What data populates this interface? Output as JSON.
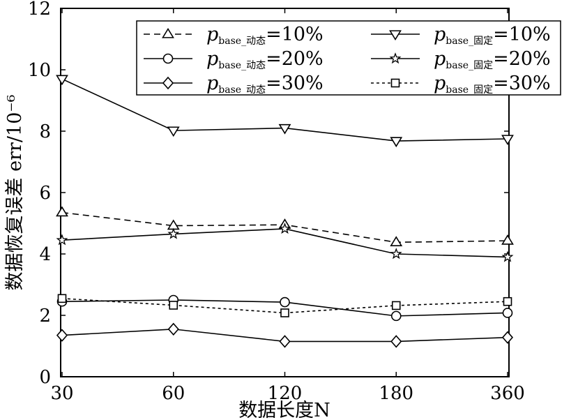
{
  "chart_data": {
    "type": "line",
    "xlabel": "数据长度N",
    "ylabel": "数据恢复误差 err/10⁻⁶",
    "categories": [
      "30",
      "60",
      "120",
      "180",
      "360"
    ],
    "ylim": [
      0,
      12
    ],
    "yticks": [
      "0",
      "2",
      "4",
      "6",
      "8",
      "10",
      "12"
    ],
    "grid": false,
    "legend_position": "top-right",
    "series": [
      {
        "label": {
          "p": "p",
          "sub": "base_动态",
          "rest": "=10%"
        },
        "marker": "triangle-up",
        "line": "dashed",
        "values": [
          5.35,
          4.92,
          4.95,
          4.38,
          4.43
        ]
      },
      {
        "label": {
          "p": "p",
          "sub": "base_动态",
          "rest": "=20%"
        },
        "marker": "circle",
        "line": "solid",
        "values": [
          2.45,
          2.5,
          2.43,
          1.98,
          2.08
        ]
      },
      {
        "label": {
          "p": "p",
          "sub": "base_动态",
          "rest": "=30%"
        },
        "marker": "diamond",
        "line": "solid",
        "values": [
          1.35,
          1.55,
          1.15,
          1.15,
          1.28
        ]
      },
      {
        "label": {
          "p": "p",
          "sub": "base_固定",
          "rest": "=10%"
        },
        "marker": "triangle-down",
        "line": "solid",
        "values": [
          9.7,
          8.02,
          8.1,
          7.68,
          7.75
        ]
      },
      {
        "label": {
          "p": "p",
          "sub": "base_固定",
          "rest": "=20%"
        },
        "marker": "star",
        "line": "solid",
        "values": [
          4.45,
          4.65,
          4.82,
          4.0,
          3.9
        ]
      },
      {
        "label": {
          "p": "p",
          "sub": "base_固定",
          "rest": "=30%"
        },
        "marker": "square",
        "line": "dotted",
        "values": [
          2.55,
          2.33,
          2.08,
          2.32,
          2.45
        ]
      }
    ]
  }
}
